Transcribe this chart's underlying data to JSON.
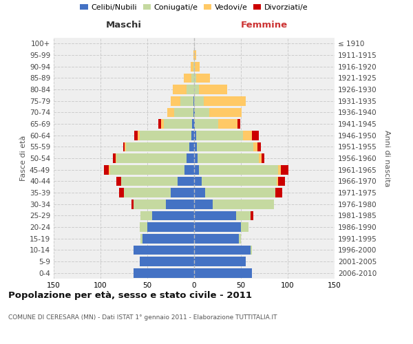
{
  "age_groups": [
    "0-4",
    "5-9",
    "10-14",
    "15-19",
    "20-24",
    "25-29",
    "30-34",
    "35-39",
    "40-44",
    "45-49",
    "50-54",
    "55-59",
    "60-64",
    "65-69",
    "70-74",
    "75-79",
    "80-84",
    "85-89",
    "90-94",
    "95-99",
    "100+"
  ],
  "birth_years": [
    "2006-2010",
    "2001-2005",
    "1996-2000",
    "1991-1995",
    "1986-1990",
    "1981-1985",
    "1976-1980",
    "1971-1975",
    "1966-1970",
    "1961-1965",
    "1956-1960",
    "1951-1955",
    "1946-1950",
    "1941-1945",
    "1936-1940",
    "1931-1935",
    "1926-1930",
    "1921-1925",
    "1916-1920",
    "1911-1915",
    "≤ 1910"
  ],
  "colors": {
    "celibi": "#4472c4",
    "coniugati": "#c5d9a0",
    "vedovi": "#ffc966",
    "divorziati": "#cc0000"
  },
  "males": {
    "celibi": [
      65,
      58,
      65,
      55,
      50,
      45,
      30,
      25,
      18,
      10,
      8,
      5,
      3,
      2,
      1,
      1,
      0,
      0,
      0,
      0,
      0
    ],
    "coniugati": [
      0,
      0,
      0,
      2,
      8,
      12,
      35,
      50,
      60,
      80,
      75,
      68,
      55,
      30,
      20,
      14,
      8,
      3,
      1,
      0,
      0
    ],
    "vedovi": [
      0,
      0,
      0,
      0,
      0,
      0,
      0,
      0,
      0,
      1,
      1,
      1,
      2,
      3,
      8,
      10,
      15,
      8,
      3,
      1,
      0
    ],
    "divorziati": [
      0,
      0,
      0,
      0,
      0,
      0,
      2,
      5,
      5,
      5,
      3,
      2,
      4,
      3,
      0,
      0,
      0,
      0,
      0,
      0,
      0
    ]
  },
  "females": {
    "nubili": [
      62,
      55,
      60,
      48,
      50,
      45,
      20,
      12,
      8,
      5,
      4,
      3,
      2,
      1,
      1,
      0,
      0,
      0,
      0,
      0,
      0
    ],
    "coniugati": [
      0,
      0,
      2,
      2,
      8,
      15,
      65,
      75,
      80,
      85,
      65,
      60,
      50,
      25,
      15,
      10,
      5,
      2,
      1,
      0,
      0
    ],
    "vedovi": [
      0,
      0,
      0,
      0,
      0,
      0,
      0,
      0,
      2,
      3,
      3,
      5,
      10,
      20,
      35,
      45,
      30,
      15,
      5,
      2,
      0
    ],
    "divorziati": [
      0,
      0,
      0,
      0,
      0,
      3,
      0,
      7,
      7,
      8,
      3,
      3,
      7,
      3,
      0,
      0,
      0,
      0,
      0,
      0,
      0
    ]
  },
  "title": "Popolazione per età, sesso e stato civile - 2011",
  "subtitle": "COMUNE DI CERESARA (MN) - Dati ISTAT 1° gennaio 2011 - Elaborazione TUTTITALIA.IT",
  "maschi_label": "Maschi",
  "femmine_label": "Femmine",
  "ylabel_left": "Fasce di età",
  "ylabel_right": "Anni di nascita",
  "xlim": 150,
  "legend_labels": [
    "Celibi/Nubili",
    "Coniugati/e",
    "Vedovi/e",
    "Divorziati/e"
  ],
  "bg_color": "#efefef"
}
